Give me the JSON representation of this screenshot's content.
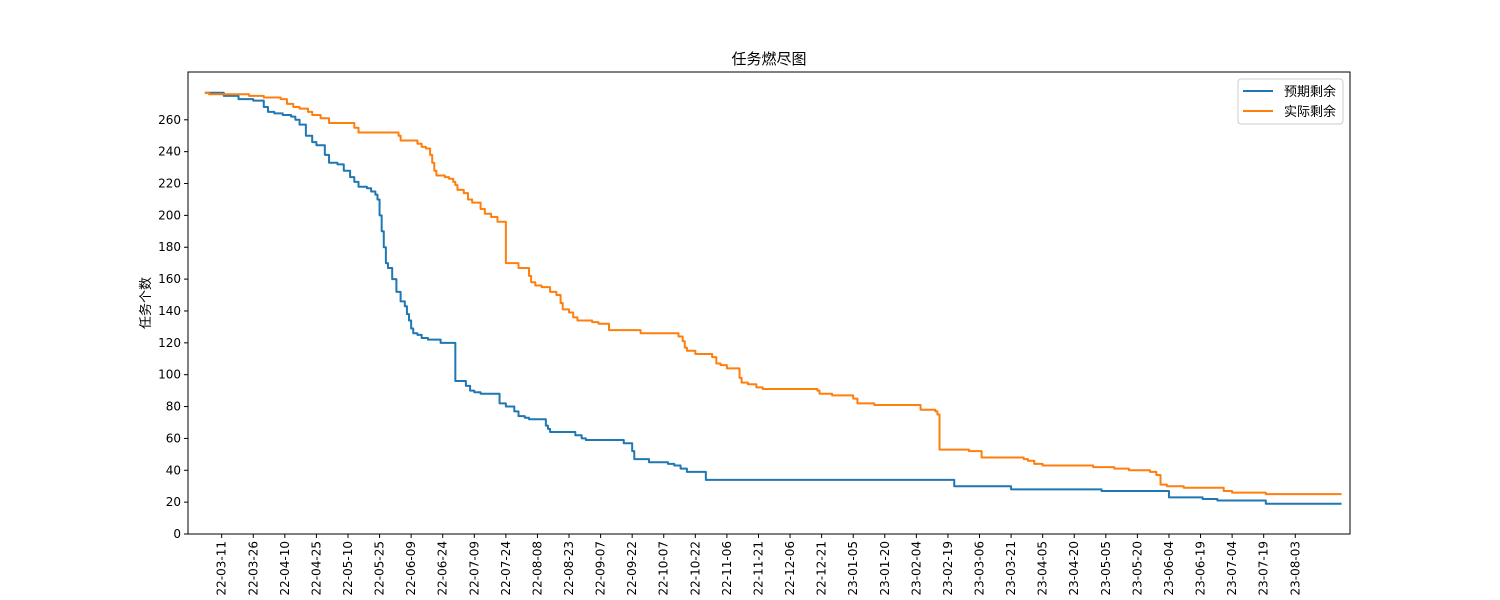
{
  "chart_data": {
    "type": "line",
    "title": "任务燃尽图",
    "xlabel": "",
    "ylabel": "任务个数",
    "ylim": [
      0,
      290
    ],
    "yticks": [
      0,
      20,
      40,
      60,
      80,
      100,
      120,
      140,
      160,
      180,
      200,
      220,
      240,
      260
    ],
    "xlim": [
      "2022-02-23",
      "2023-08-29"
    ],
    "xtick_labels": [
      "22-03-11",
      "22-03-26",
      "22-04-10",
      "22-04-25",
      "22-05-10",
      "22-05-25",
      "22-06-09",
      "22-06-24",
      "22-07-09",
      "22-07-24",
      "22-08-08",
      "22-08-23",
      "22-09-07",
      "22-09-22",
      "22-10-07",
      "22-10-22",
      "22-11-06",
      "22-11-21",
      "22-12-06",
      "22-12-21",
      "23-01-05",
      "23-01-20",
      "23-02-04",
      "23-02-19",
      "23-03-06",
      "23-03-21",
      "23-04-05",
      "23-04-20",
      "23-05-05",
      "23-05-20",
      "23-06-04",
      "23-06-19",
      "23-07-04",
      "23-07-19",
      "23-08-03"
    ],
    "xtick_dates": [
      "2022-03-11",
      "2022-03-26",
      "2022-04-10",
      "2022-04-25",
      "2022-05-10",
      "2022-05-25",
      "2022-06-09",
      "2022-06-24",
      "2022-07-09",
      "2022-07-24",
      "2022-08-08",
      "2022-08-23",
      "2022-09-07",
      "2022-09-22",
      "2022-10-07",
      "2022-10-22",
      "2022-11-06",
      "2022-11-21",
      "2022-12-06",
      "2022-12-21",
      "2023-01-05",
      "2023-01-20",
      "2023-02-04",
      "2023-02-19",
      "2023-03-06",
      "2023-03-21",
      "2023-04-05",
      "2023-04-20",
      "2023-05-05",
      "2023-05-20",
      "2023-06-04",
      "2023-06-19",
      "2023-07-04",
      "2023-07-19",
      "2023-08-03"
    ],
    "grid": false,
    "legend_position": "upper right",
    "series": [
      {
        "name": "预期剩余",
        "color": "#1f77b4",
        "step": "post",
        "points": [
          [
            "2022-03-03",
            277
          ],
          [
            "2022-03-12",
            275
          ],
          [
            "2022-03-19",
            273
          ],
          [
            "2022-03-26",
            272
          ],
          [
            "2022-03-31",
            268
          ],
          [
            "2022-04-02",
            265
          ],
          [
            "2022-04-05",
            264
          ],
          [
            "2022-04-09",
            263
          ],
          [
            "2022-04-13",
            262
          ],
          [
            "2022-04-15",
            260
          ],
          [
            "2022-04-17",
            257
          ],
          [
            "2022-04-20",
            250
          ],
          [
            "2022-04-23",
            246
          ],
          [
            "2022-04-25",
            244
          ],
          [
            "2022-04-29",
            238
          ],
          [
            "2022-05-01",
            233
          ],
          [
            "2022-05-05",
            232
          ],
          [
            "2022-05-08",
            228
          ],
          [
            "2022-05-11",
            224
          ],
          [
            "2022-05-13",
            221
          ],
          [
            "2022-05-15",
            218
          ],
          [
            "2022-05-19",
            217
          ],
          [
            "2022-05-21",
            215
          ],
          [
            "2022-05-23",
            213
          ],
          [
            "2022-05-24",
            210
          ],
          [
            "2022-05-25",
            200
          ],
          [
            "2022-05-26",
            190
          ],
          [
            "2022-05-27",
            180
          ],
          [
            "2022-05-28",
            170
          ],
          [
            "2022-05-29",
            167
          ],
          [
            "2022-05-31",
            160
          ],
          [
            "2022-06-02",
            152
          ],
          [
            "2022-06-04",
            146
          ],
          [
            "2022-06-06",
            143
          ],
          [
            "2022-06-07",
            138
          ],
          [
            "2022-06-08",
            134
          ],
          [
            "2022-06-09",
            129
          ],
          [
            "2022-06-10",
            126
          ],
          [
            "2022-06-12",
            125
          ],
          [
            "2022-06-14",
            123
          ],
          [
            "2022-06-17",
            122
          ],
          [
            "2022-06-23",
            120
          ],
          [
            "2022-06-30",
            96
          ],
          [
            "2022-07-05",
            93
          ],
          [
            "2022-07-07",
            90
          ],
          [
            "2022-07-09",
            89
          ],
          [
            "2022-07-12",
            88
          ],
          [
            "2022-07-21",
            82
          ],
          [
            "2022-07-24",
            80
          ],
          [
            "2022-07-28",
            77
          ],
          [
            "2022-07-30",
            74
          ],
          [
            "2022-08-02",
            73
          ],
          [
            "2022-08-04",
            72
          ],
          [
            "2022-08-12",
            68
          ],
          [
            "2022-08-13",
            66
          ],
          [
            "2022-08-14",
            64
          ],
          [
            "2022-08-26",
            62
          ],
          [
            "2022-08-29",
            60
          ],
          [
            "2022-08-31",
            59
          ],
          [
            "2022-09-18",
            57
          ],
          [
            "2022-09-22",
            52
          ],
          [
            "2022-09-23",
            47
          ],
          [
            "2022-09-30",
            45
          ],
          [
            "2022-10-09",
            44
          ],
          [
            "2022-10-12",
            43
          ],
          [
            "2022-10-15",
            41
          ],
          [
            "2022-10-18",
            39
          ],
          [
            "2022-10-27",
            34
          ],
          [
            "2023-02-22",
            30
          ],
          [
            "2023-03-21",
            28
          ],
          [
            "2023-05-03",
            27
          ],
          [
            "2023-06-04",
            23
          ],
          [
            "2023-06-20",
            22
          ],
          [
            "2023-06-27",
            21
          ],
          [
            "2023-07-20",
            19
          ],
          [
            "2023-08-25",
            19
          ]
        ]
      },
      {
        "name": "实际剩余",
        "color": "#ff7f0e",
        "step": "post",
        "points": [
          [
            "2022-03-03",
            277
          ],
          [
            "2022-03-05",
            276
          ],
          [
            "2022-03-11",
            276
          ],
          [
            "2022-03-24",
            275
          ],
          [
            "2022-03-31",
            274
          ],
          [
            "2022-04-08",
            273
          ],
          [
            "2022-04-11",
            270
          ],
          [
            "2022-04-14",
            268
          ],
          [
            "2022-04-17",
            267
          ],
          [
            "2022-04-21",
            265
          ],
          [
            "2022-04-23",
            263
          ],
          [
            "2022-04-27",
            261
          ],
          [
            "2022-05-01",
            258
          ],
          [
            "2022-05-13",
            255
          ],
          [
            "2022-05-15",
            252
          ],
          [
            "2022-06-03",
            250
          ],
          [
            "2022-06-04",
            247
          ],
          [
            "2022-06-12",
            245
          ],
          [
            "2022-06-14",
            243
          ],
          [
            "2022-06-16",
            242
          ],
          [
            "2022-06-18",
            238
          ],
          [
            "2022-06-19",
            233
          ],
          [
            "2022-06-20",
            228
          ],
          [
            "2022-06-21",
            225
          ],
          [
            "2022-06-25",
            224
          ],
          [
            "2022-06-27",
            223
          ],
          [
            "2022-06-29",
            221
          ],
          [
            "2022-06-30",
            219
          ],
          [
            "2022-07-01",
            216
          ],
          [
            "2022-07-04",
            214
          ],
          [
            "2022-07-06",
            210
          ],
          [
            "2022-07-08",
            208
          ],
          [
            "2022-07-12",
            204
          ],
          [
            "2022-07-14",
            201
          ],
          [
            "2022-07-17",
            199
          ],
          [
            "2022-07-20",
            196
          ],
          [
            "2022-07-24",
            170
          ],
          [
            "2022-07-30",
            167
          ],
          [
            "2022-08-04",
            162
          ],
          [
            "2022-08-05",
            158
          ],
          [
            "2022-08-07",
            156
          ],
          [
            "2022-08-10",
            155
          ],
          [
            "2022-08-14",
            152
          ],
          [
            "2022-08-17",
            150
          ],
          [
            "2022-08-19",
            145
          ],
          [
            "2022-08-20",
            141
          ],
          [
            "2022-08-23",
            139
          ],
          [
            "2022-08-25",
            136
          ],
          [
            "2022-08-27",
            134
          ],
          [
            "2022-09-03",
            133
          ],
          [
            "2022-09-06",
            132
          ],
          [
            "2022-09-11",
            128
          ],
          [
            "2022-09-26",
            126
          ],
          [
            "2022-10-14",
            124
          ],
          [
            "2022-10-16",
            121
          ],
          [
            "2022-10-17",
            117
          ],
          [
            "2022-10-18",
            115
          ],
          [
            "2022-10-22",
            113
          ],
          [
            "2022-10-30",
            111
          ],
          [
            "2022-11-01",
            107
          ],
          [
            "2022-11-03",
            106
          ],
          [
            "2022-11-06",
            104
          ],
          [
            "2022-11-12",
            98
          ],
          [
            "2022-11-13",
            95
          ],
          [
            "2022-11-16",
            94
          ],
          [
            "2022-11-20",
            92
          ],
          [
            "2022-11-23",
            91
          ],
          [
            "2022-12-19",
            90
          ],
          [
            "2022-12-20",
            88
          ],
          [
            "2022-12-26",
            87
          ],
          [
            "2023-01-05",
            85
          ],
          [
            "2023-01-07",
            82
          ],
          [
            "2023-01-15",
            81
          ],
          [
            "2023-02-06",
            78
          ],
          [
            "2023-02-13",
            77
          ],
          [
            "2023-02-14",
            75
          ],
          [
            "2023-02-15",
            53
          ],
          [
            "2023-03-01",
            52
          ],
          [
            "2023-03-07",
            48
          ],
          [
            "2023-03-27",
            47
          ],
          [
            "2023-03-29",
            46
          ],
          [
            "2023-04-01",
            44
          ],
          [
            "2023-04-05",
            43
          ],
          [
            "2023-04-29",
            42
          ],
          [
            "2023-05-09",
            41
          ],
          [
            "2023-05-16",
            40
          ],
          [
            "2023-05-26",
            39
          ],
          [
            "2023-05-29",
            37
          ],
          [
            "2023-05-31",
            31
          ],
          [
            "2023-06-03",
            30
          ],
          [
            "2023-06-11",
            29
          ],
          [
            "2023-06-30",
            27
          ],
          [
            "2023-07-04",
            26
          ],
          [
            "2023-07-20",
            25
          ],
          [
            "2023-08-25",
            25
          ]
        ]
      }
    ]
  }
}
